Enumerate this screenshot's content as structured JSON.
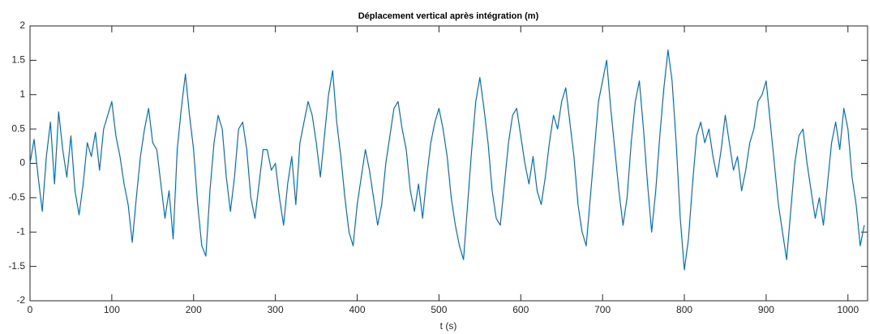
{
  "chart_data": {
    "type": "line",
    "title": "Déplacement vertical après intégration (m)",
    "xlabel": "t (s)",
    "color": "#0072bd",
    "x": [
      0,
      5,
      10,
      15,
      20,
      25,
      30,
      35,
      40,
      45,
      50,
      55,
      60,
      65,
      70,
      75,
      80,
      85,
      90,
      95,
      100,
      105,
      110,
      115,
      120,
      125,
      130,
      135,
      140,
      145,
      150,
      155,
      160,
      165,
      170,
      175,
      180,
      185,
      190,
      195,
      200,
      205,
      210,
      215,
      220,
      225,
      230,
      235,
      240,
      245,
      250,
      255,
      260,
      265,
      270,
      275,
      280,
      285,
      290,
      295,
      300,
      305,
      310,
      315,
      320,
      325,
      330,
      335,
      340,
      345,
      350,
      355,
      360,
      365,
      370,
      375,
      380,
      385,
      390,
      395,
      400,
      405,
      410,
      415,
      420,
      425,
      430,
      435,
      440,
      445,
      450,
      455,
      460,
      465,
      470,
      475,
      480,
      485,
      490,
      495,
      500,
      505,
      510,
      515,
      520,
      525,
      530,
      535,
      540,
      545,
      550,
      555,
      560,
      565,
      570,
      575,
      580,
      585,
      590,
      595,
      600,
      605,
      610,
      615,
      620,
      625,
      630,
      635,
      640,
      645,
      650,
      655,
      660,
      665,
      670,
      675,
      680,
      685,
      690,
      695,
      700,
      705,
      710,
      715,
      720,
      725,
      730,
      735,
      740,
      745,
      750,
      755,
      760,
      765,
      770,
      775,
      780,
      785,
      790,
      795,
      800,
      805,
      810,
      815,
      820,
      825,
      830,
      835,
      840,
      845,
      850,
      855,
      860,
      865,
      870,
      875,
      880,
      885,
      890,
      895,
      900,
      905,
      910,
      915,
      920,
      925,
      930,
      935,
      940,
      945,
      950,
      955,
      960,
      965,
      970,
      975,
      980,
      985,
      990,
      995,
      1000,
      1005,
      1010,
      1015,
      1020
    ],
    "values": [
      0,
      0.35,
      -0.2,
      -0.7,
      0.1,
      0.6,
      -0.3,
      0.75,
      0.2,
      -0.2,
      0.4,
      -0.4,
      -0.75,
      -0.3,
      0.3,
      0.1,
      0.45,
      -0.1,
      0.5,
      0.7,
      0.9,
      0.4,
      0.1,
      -0.3,
      -0.6,
      -1.15,
      -0.5,
      0.1,
      0.5,
      0.8,
      0.3,
      0.2,
      -0.3,
      -0.8,
      -0.4,
      -1.1,
      0.2,
      0.8,
      1.3,
      0.7,
      0.2,
      -0.6,
      -1.2,
      -1.35,
      -0.4,
      0.3,
      0.7,
      0.5,
      -0.2,
      -0.7,
      -0.2,
      0.5,
      0.6,
      0.2,
      -0.5,
      -0.8,
      -0.3,
      0.2,
      0.2,
      -0.1,
      0,
      -0.5,
      -0.9,
      -0.3,
      0.1,
      -0.6,
      0.3,
      0.6,
      0.9,
      0.7,
      0.3,
      -0.2,
      0.4,
      1.0,
      1.35,
      0.6,
      0.1,
      -0.5,
      -1.0,
      -1.2,
      -0.6,
      -0.2,
      0.2,
      -0.1,
      -0.5,
      -0.9,
      -0.6,
      0,
      0.4,
      0.8,
      0.9,
      0.5,
      0.2,
      -0.4,
      -0.7,
      -0.3,
      -0.8,
      -0.2,
      0.3,
      0.6,
      0.8,
      0.5,
      0.1,
      -0.5,
      -0.9,
      -1.2,
      -1.4,
      -0.6,
      0.2,
      0.9,
      1.25,
      0.8,
      0.3,
      -0.4,
      -0.8,
      -0.9,
      -0.3,
      0.3,
      0.7,
      0.8,
      0.4,
      0,
      -0.3,
      0.1,
      -0.4,
      -0.6,
      -0.2,
      0.3,
      0.7,
      0.5,
      0.9,
      1.1,
      0.6,
      0.1,
      -0.6,
      -1.0,
      -1.2,
      -0.5,
      0.2,
      0.9,
      1.2,
      1.5,
      0.8,
      0.2,
      -0.4,
      -0.9,
      -0.5,
      0.3,
      0.9,
      1.2,
      0.5,
      -0.3,
      -1.0,
      -0.4,
      0.4,
      1.1,
      1.65,
      1.2,
      0.3,
      -0.8,
      -1.55,
      -1.1,
      -0.3,
      0.4,
      0.6,
      0.3,
      0.5,
      0.1,
      -0.2,
      0.2,
      0.7,
      0.3,
      -0.1,
      0.1,
      -0.4,
      -0.1,
      0.3,
      0.5,
      0.9,
      1.0,
      1.2,
      0.6,
      0,
      -0.6,
      -1.0,
      -1.4,
      -0.7,
      0,
      0.4,
      0.5,
      0,
      -0.4,
      -0.8,
      -0.5,
      -0.9,
      -0.3,
      0.3,
      0.6,
      0.2,
      0.8,
      0.5,
      -0.2,
      -0.6,
      -1.2,
      -0.9
    ],
    "xlim": [
      0,
      1024
    ],
    "xticks": [
      0,
      100,
      200,
      300,
      400,
      500,
      600,
      700,
      800,
      900,
      1000
    ],
    "ylim": [
      -2,
      2
    ],
    "yticks": [
      -2,
      -1.5,
      -1,
      -0.5,
      0,
      0.5,
      1,
      1.5,
      2
    ]
  }
}
